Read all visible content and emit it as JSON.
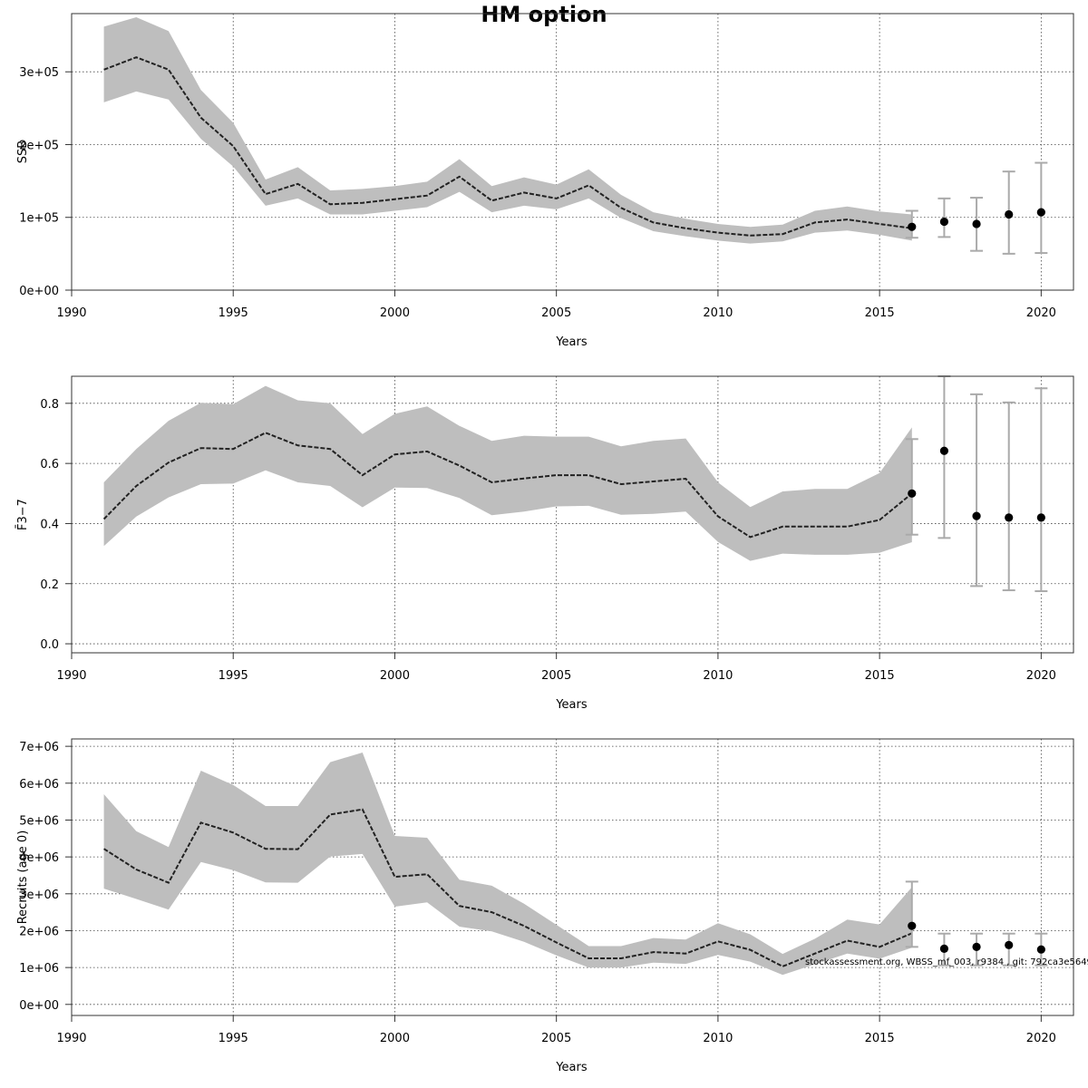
{
  "title": "HM option",
  "footer": "stockassessment.org, WBSS_mf_003, r9384 , git: 792ca3e5649",
  "colors": {
    "band": "#bebebe",
    "line": "#222222",
    "point": "#000000",
    "errorbar": "#aaaaaa"
  },
  "chart_data": [
    {
      "type": "line",
      "ylabel": "SSB",
      "xlabel": "Years",
      "xlim": [
        1990,
        2021
      ],
      "ylim": [
        0,
        380000
      ],
      "x_ticks": [
        1990,
        1995,
        2000,
        2005,
        2010,
        2015,
        2020
      ],
      "x_tick_labels": [
        "1990",
        "1995",
        "2000",
        "2005",
        "2010",
        "2015",
        "2020"
      ],
      "y_ticks": [
        0,
        100000,
        200000,
        300000
      ],
      "y_tick_labels": [
        "0e+00",
        "1e+05",
        "2e+05",
        "3e+05"
      ],
      "grid": true,
      "estimate": {
        "x": [
          1991,
          1992,
          1993,
          1994,
          1995,
          1996,
          1997,
          1998,
          1999,
          2000,
          2001,
          2002,
          2003,
          2004,
          2005,
          2006,
          2007,
          2008,
          2009,
          2010,
          2011,
          2012,
          2013,
          2014,
          2015,
          2016
        ],
        "y": [
          303000,
          320000,
          303000,
          237000,
          198000,
          132000,
          146000,
          118000,
          120000,
          125000,
          130000,
          156000,
          123000,
          134000,
          126000,
          144000,
          113000,
          93000,
          85000,
          79000,
          75000,
          77000,
          93000,
          97000,
          91000,
          85000
        ],
        "lower": [
          258000,
          273000,
          262000,
          208000,
          170000,
          116000,
          126000,
          104000,
          104000,
          109000,
          114000,
          135000,
          107000,
          116000,
          111000,
          126000,
          99000,
          81000,
          74000,
          68000,
          64000,
          67000,
          79000,
          82000,
          76000,
          68000
        ],
        "upper": [
          362000,
          375000,
          356000,
          275000,
          230000,
          152000,
          169000,
          137000,
          139000,
          143000,
          149000,
          180000,
          143000,
          155000,
          145000,
          166000,
          131000,
          107000,
          98000,
          91000,
          87000,
          90000,
          109000,
          115000,
          108000,
          104000
        ]
      },
      "forecast": {
        "x": [
          2016,
          2017,
          2018,
          2019,
          2020
        ],
        "y": [
          87000,
          94000,
          91000,
          104000,
          107000
        ],
        "lower": [
          72000,
          73000,
          54000,
          50000,
          51000
        ],
        "upper": [
          109000,
          126000,
          127000,
          163000,
          175000
        ]
      }
    },
    {
      "type": "line",
      "ylabel": "F̄3−7",
      "xlabel": "Years",
      "xlim": [
        1990,
        2021
      ],
      "ylim": [
        -0.03,
        0.89
      ],
      "x_ticks": [
        1990,
        1995,
        2000,
        2005,
        2010,
        2015,
        2020
      ],
      "x_tick_labels": [
        "1990",
        "1995",
        "2000",
        "2005",
        "2010",
        "2015",
        "2020"
      ],
      "y_ticks": [
        0.0,
        0.2,
        0.4,
        0.6,
        0.8
      ],
      "y_tick_labels": [
        "0.0",
        "0.2",
        "0.4",
        "0.6",
        "0.8"
      ],
      "grid": true,
      "estimate": {
        "x": [
          1991,
          1992,
          1993,
          1994,
          1995,
          1996,
          1997,
          1998,
          1999,
          2000,
          2001,
          2002,
          2003,
          2004,
          2005,
          2006,
          2007,
          2008,
          2009,
          2010,
          2011,
          2012,
          2013,
          2014,
          2015,
          2016
        ],
        "y": [
          0.415,
          0.525,
          0.603,
          0.651,
          0.648,
          0.702,
          0.66,
          0.648,
          0.561,
          0.63,
          0.64,
          0.593,
          0.537,
          0.55,
          0.561,
          0.561,
          0.531,
          0.54,
          0.549,
          0.424,
          0.355,
          0.39,
          0.39,
          0.39,
          0.412,
          0.5
        ],
        "lower": [
          0.325,
          0.423,
          0.487,
          0.531,
          0.533,
          0.577,
          0.537,
          0.525,
          0.454,
          0.52,
          0.518,
          0.485,
          0.428,
          0.44,
          0.457,
          0.459,
          0.429,
          0.432,
          0.44,
          0.339,
          0.276,
          0.3,
          0.296,
          0.296,
          0.303,
          0.338
        ],
        "upper": [
          0.537,
          0.648,
          0.742,
          0.802,
          0.797,
          0.858,
          0.81,
          0.8,
          0.698,
          0.765,
          0.79,
          0.725,
          0.675,
          0.692,
          0.689,
          0.689,
          0.657,
          0.675,
          0.683,
          0.537,
          0.455,
          0.507,
          0.515,
          0.515,
          0.568,
          0.72
        ]
      },
      "forecast": {
        "x": [
          2016,
          2017,
          2018,
          2019,
          2020
        ],
        "y": [
          0.5,
          0.642,
          0.425,
          0.42,
          0.42
        ],
        "lower": [
          0.363,
          0.352,
          0.192,
          0.178,
          0.175
        ],
        "upper": [
          0.681,
          0.89,
          0.83,
          0.803,
          0.85
        ]
      }
    },
    {
      "type": "line",
      "ylabel": "Recruits (age 0)",
      "xlabel": "Years",
      "xlim": [
        1990,
        2021
      ],
      "ylim": [
        -300000,
        7200000
      ],
      "x_ticks": [
        1990,
        1995,
        2000,
        2005,
        2010,
        2015,
        2020
      ],
      "x_tick_labels": [
        "1990",
        "1995",
        "2000",
        "2005",
        "2010",
        "2015",
        "2020"
      ],
      "y_ticks": [
        0,
        1000000,
        2000000,
        3000000,
        4000000,
        5000000,
        6000000,
        7000000
      ],
      "y_tick_labels": [
        "0e+00",
        "1e+06",
        "2e+06",
        "3e+06",
        "4e+06",
        "5e+06",
        "6e+06",
        "7e+06"
      ],
      "grid": true,
      "estimate": {
        "x": [
          1991,
          1992,
          1993,
          1994,
          1995,
          1996,
          1997,
          1998,
          1999,
          2000,
          2001,
          2002,
          2003,
          2004,
          2005,
          2006,
          2007,
          2008,
          2009,
          2010,
          2011,
          2012,
          2013,
          2014,
          2015,
          2016
        ],
        "y": [
          4220000,
          3660000,
          3300000,
          4930000,
          4660000,
          4220000,
          4210000,
          5150000,
          5290000,
          3460000,
          3530000,
          2670000,
          2500000,
          2130000,
          1680000,
          1250000,
          1250000,
          1420000,
          1380000,
          1710000,
          1480000,
          1030000,
          1380000,
          1730000,
          1560000,
          1930000
        ],
        "lower": [
          3140000,
          2860000,
          2570000,
          3860000,
          3640000,
          3310000,
          3300000,
          4010000,
          4080000,
          2650000,
          2770000,
          2110000,
          1980000,
          1700000,
          1330000,
          1000000,
          1000000,
          1130000,
          1100000,
          1340000,
          1160000,
          800000,
          1090000,
          1380000,
          1240000,
          1540000
        ],
        "upper": [
          5700000,
          4700000,
          4270000,
          6340000,
          5950000,
          5380000,
          5380000,
          6570000,
          6830000,
          4570000,
          4520000,
          3380000,
          3220000,
          2730000,
          2160000,
          1580000,
          1580000,
          1800000,
          1760000,
          2200000,
          1900000,
          1370000,
          1780000,
          2300000,
          2170000,
          3180000
        ]
      },
      "forecast": {
        "x": [
          2016,
          2017,
          2018,
          2019,
          2020
        ],
        "y": [
          2130000,
          1510000,
          1560000,
          1610000,
          1490000
        ],
        "lower": [
          1560000,
          1060000,
          1060000,
          1060000,
          1060000
        ],
        "upper": [
          3330000,
          1920000,
          1920000,
          1920000,
          1920000
        ]
      }
    }
  ]
}
